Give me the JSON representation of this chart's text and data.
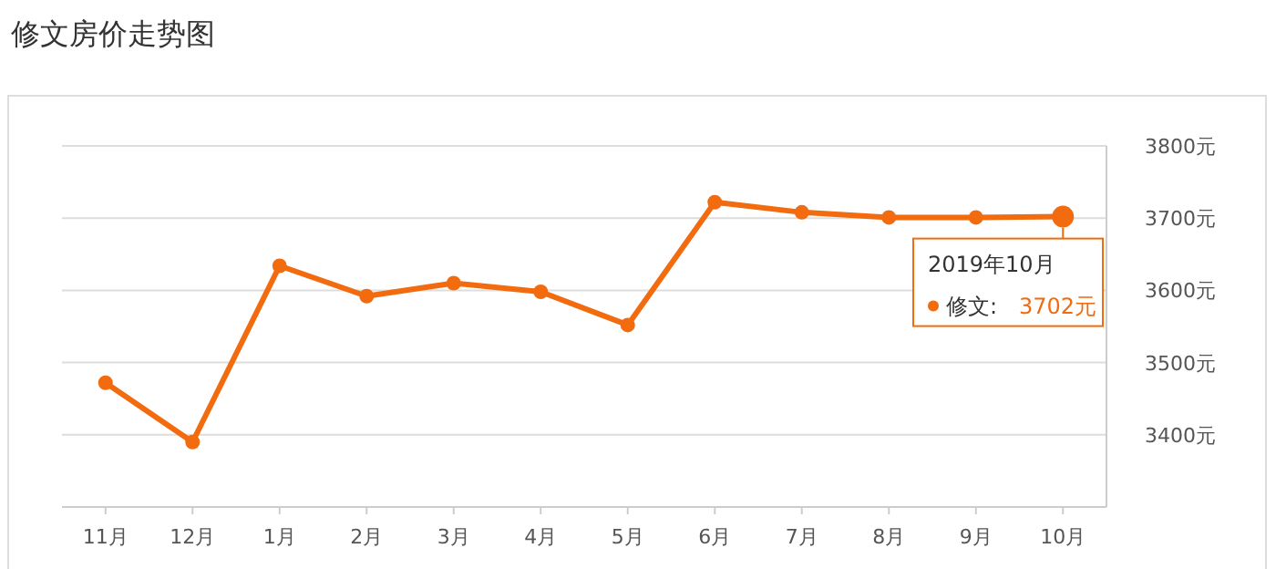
{
  "chart_data": {
    "type": "line",
    "title": "修文房价走势图",
    "categories": [
      "11月",
      "12月",
      "1月",
      "2月",
      "3月",
      "4月",
      "5月",
      "6月",
      "7月",
      "8月",
      "9月",
      "10月"
    ],
    "series": [
      {
        "name": "修文:",
        "color": "#f26b0f",
        "values": [
          3472,
          3390,
          3634,
          3592,
          3610,
          3598,
          3552,
          3722,
          3708,
          3701,
          3701,
          3702
        ],
        "value_labels": [
          null,
          null,
          null,
          null,
          null,
          null,
          null,
          null,
          null,
          null,
          null,
          "3702元"
        ]
      }
    ],
    "ylim": [
      3300,
      3800
    ],
    "yticks": [
      {
        "value": 3400,
        "label": "3400元"
      },
      {
        "value": 3500,
        "label": "3500元"
      },
      {
        "value": 3600,
        "label": "3600元"
      },
      {
        "value": 3700,
        "label": "3700元"
      },
      {
        "value": 3800,
        "label": "3800元"
      }
    ],
    "grid": "y",
    "marker": "circle",
    "line_style": "solid",
    "annotations": [
      {
        "text": "2019年10月",
        "x": "10月",
        "y": 3702
      }
    ]
  }
}
